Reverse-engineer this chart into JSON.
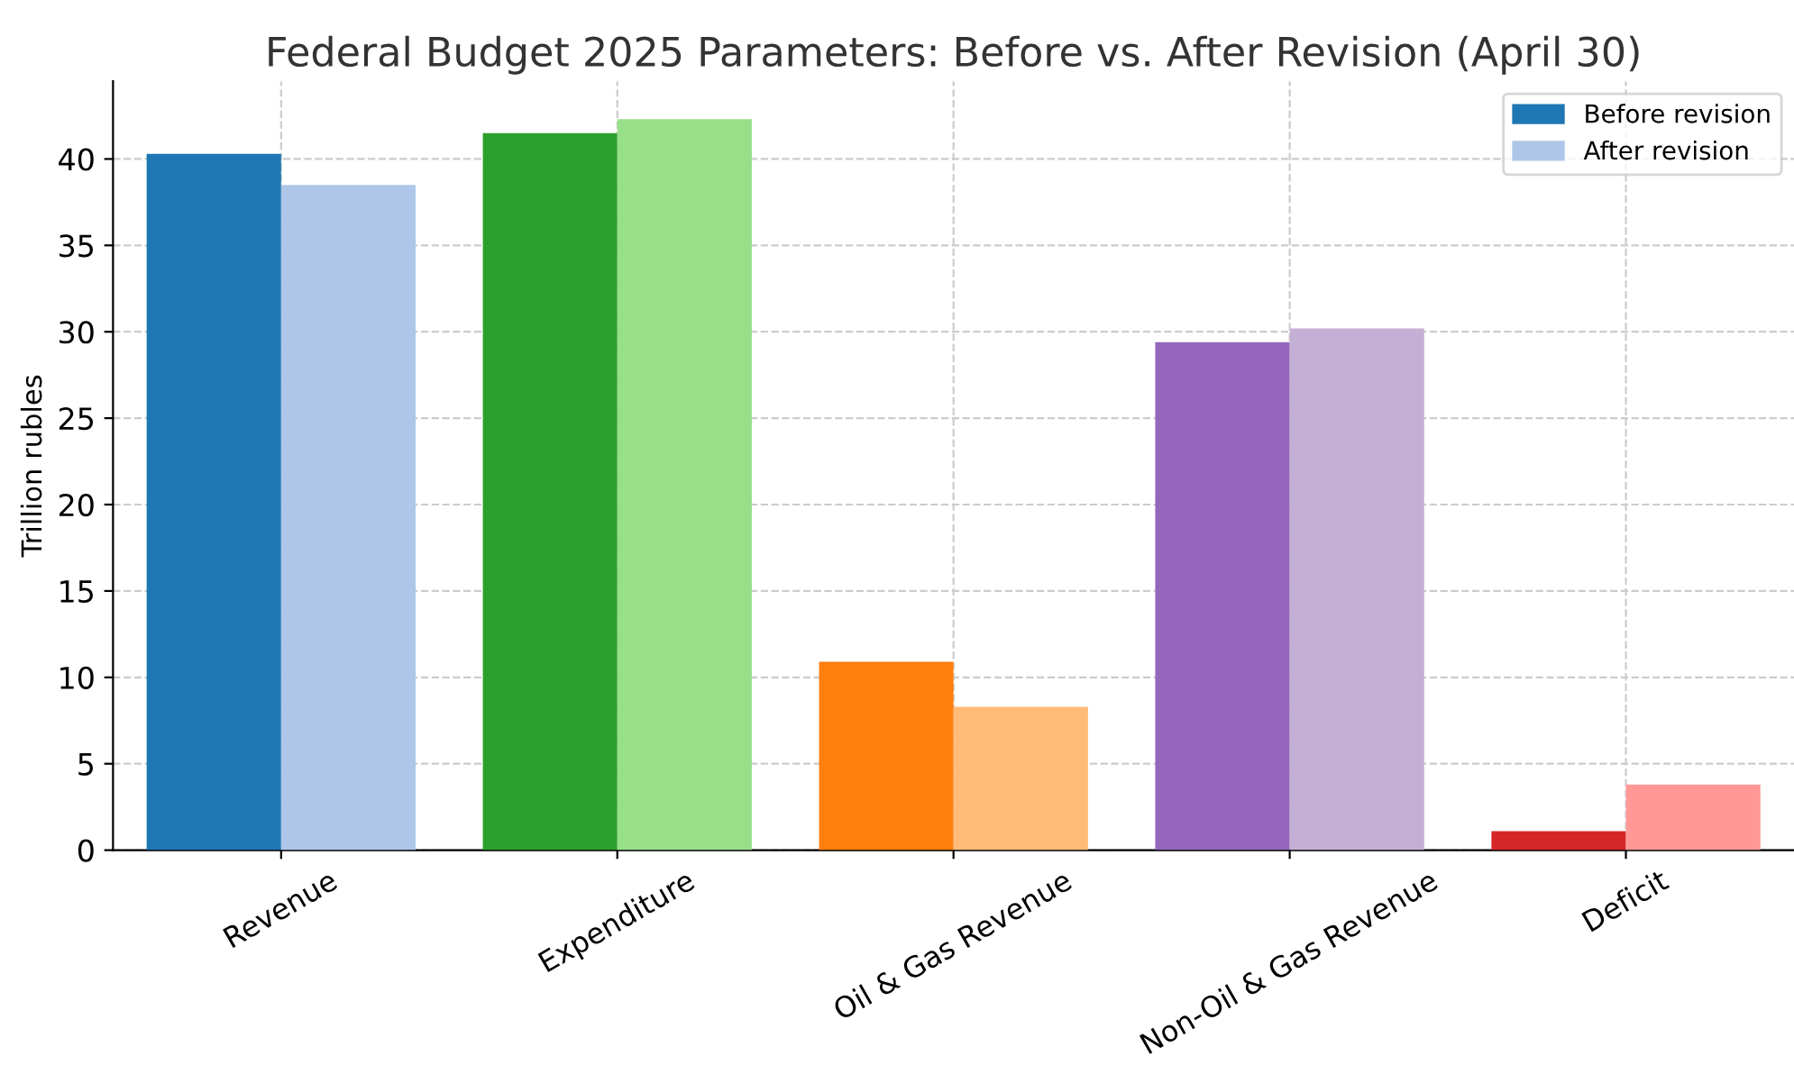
{
  "chart_data": {
    "type": "bar",
    "title": "Federal Budget 2025 Parameters: Before vs. After Revision (April 30)",
    "ylabel": "Trillion rubles",
    "categories": [
      "Revenue",
      "Expenditure",
      "Oil & Gas Revenue",
      "Non-Oil & Gas Revenue",
      "Deficit"
    ],
    "series": [
      {
        "name": "Before revision",
        "color": "#1f77b4",
        "colors": [
          "#1f77b4",
          "#2ca02c",
          "#ff7f0e",
          "#9467bd",
          "#d62728"
        ],
        "values": [
          40.3,
          41.5,
          10.9,
          29.4,
          1.1
        ]
      },
      {
        "name": "After revision",
        "color": "#aec7e8",
        "colors": [
          "#aec7e8",
          "#98df8a",
          "#ffbb78",
          "#c5b0d5",
          "#ff9896"
        ],
        "values": [
          38.5,
          42.3,
          8.3,
          30.2,
          3.8
        ]
      }
    ],
    "ylim": [
      0,
      44.5
    ],
    "yticks": [
      0,
      5,
      10,
      15,
      20,
      25,
      30,
      35,
      40
    ],
    "grid": true,
    "legend": "top right"
  }
}
